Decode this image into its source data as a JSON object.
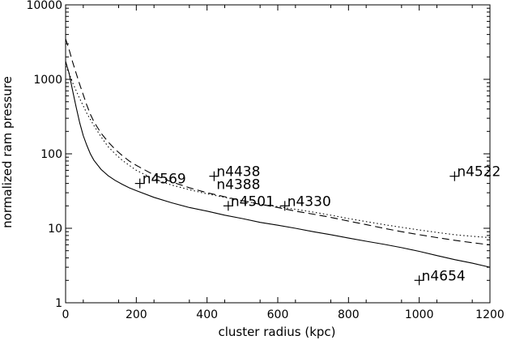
{
  "chart_data": {
    "type": "line",
    "title": "",
    "xlabel": "cluster radius (kpc)",
    "ylabel": "normalized ram pressure",
    "xlim": [
      0,
      1200
    ],
    "ylim": [
      1,
      10000
    ],
    "xscale": "linear",
    "yscale": "log",
    "grid": false,
    "legend": "none",
    "x_ticks": [
      0,
      200,
      400,
      600,
      800,
      1000,
      1200
    ],
    "x_tick_labels": [
      "0",
      "200",
      "400",
      "600",
      "800",
      "1000",
      "1200"
    ],
    "y_ticks": [
      1,
      10,
      100,
      1000,
      10000
    ],
    "y_tick_labels": [
      "1",
      "10",
      "100",
      "1000",
      "10000"
    ],
    "series": [
      {
        "style": "solid",
        "color": "#000000",
        "x": [
          0,
          10,
          20,
          30,
          40,
          50,
          60,
          70,
          80,
          100,
          120,
          140,
          160,
          180,
          200,
          250,
          300,
          350,
          400,
          450,
          500,
          550,
          600,
          650,
          700,
          750,
          800,
          850,
          900,
          950,
          1000,
          1050,
          1100,
          1150,
          1200
        ],
        "y": [
          1750,
          1200,
          700,
          420,
          260,
          175,
          130,
          100,
          82,
          62,
          51,
          44,
          39,
          35,
          32,
          26,
          22,
          19,
          17,
          15,
          13.5,
          12,
          11,
          10,
          9,
          8.2,
          7.4,
          6.7,
          6.1,
          5.5,
          4.9,
          4.3,
          3.8,
          3.4,
          3.0
        ]
      },
      {
        "style": "dashed",
        "color": "#000000",
        "x": [
          0,
          10,
          20,
          30,
          40,
          50,
          60,
          70,
          80,
          100,
          120,
          140,
          160,
          180,
          200,
          250,
          300,
          350,
          400,
          450,
          500,
          550,
          600,
          650,
          700,
          750,
          800,
          850,
          900,
          950,
          1000,
          1050,
          1100,
          1150,
          1200
        ],
        "y": [
          3500,
          2500,
          1700,
          1200,
          850,
          620,
          450,
          340,
          270,
          190,
          145,
          115,
          95,
          80,
          70,
          52,
          42,
          35,
          30,
          26.5,
          23.5,
          21,
          19,
          17,
          15.5,
          14,
          12.5,
          11.2,
          10,
          9,
          8.2,
          7.5,
          6.9,
          6.4,
          6.0
        ]
      },
      {
        "style": "dotted",
        "color": "#000000",
        "x": [
          0,
          10,
          20,
          30,
          40,
          50,
          60,
          70,
          80,
          100,
          120,
          140,
          160,
          180,
          200,
          250,
          300,
          350,
          400,
          450,
          500,
          550,
          600,
          650,
          700,
          750,
          800,
          850,
          900,
          950,
          1000,
          1050,
          1100,
          1150,
          1200
        ],
        "y": [
          1500,
          1200,
          900,
          700,
          550,
          440,
          350,
          290,
          240,
          170,
          125,
          100,
          82,
          70,
          60,
          46,
          38,
          33,
          29,
          26,
          23.5,
          21,
          19.5,
          18,
          16.5,
          15,
          13.5,
          12.3,
          11.2,
          10.3,
          9.5,
          8.8,
          8.2,
          7.8,
          7.5
        ]
      }
    ],
    "points": [
      {
        "label": "n4569",
        "x": 210,
        "y": 40
      },
      {
        "label": "n4438",
        "x": 420,
        "y": 50
      },
      {
        "label": "n4388",
        "x": 420,
        "y": 50
      },
      {
        "label": "n4501",
        "x": 460,
        "y": 20
      },
      {
        "label": "n4330",
        "x": 620,
        "y": 20
      },
      {
        "label": "n4522",
        "x": 1100,
        "y": 50
      },
      {
        "label": "n4654",
        "x": 1000,
        "y": 2
      }
    ]
  }
}
